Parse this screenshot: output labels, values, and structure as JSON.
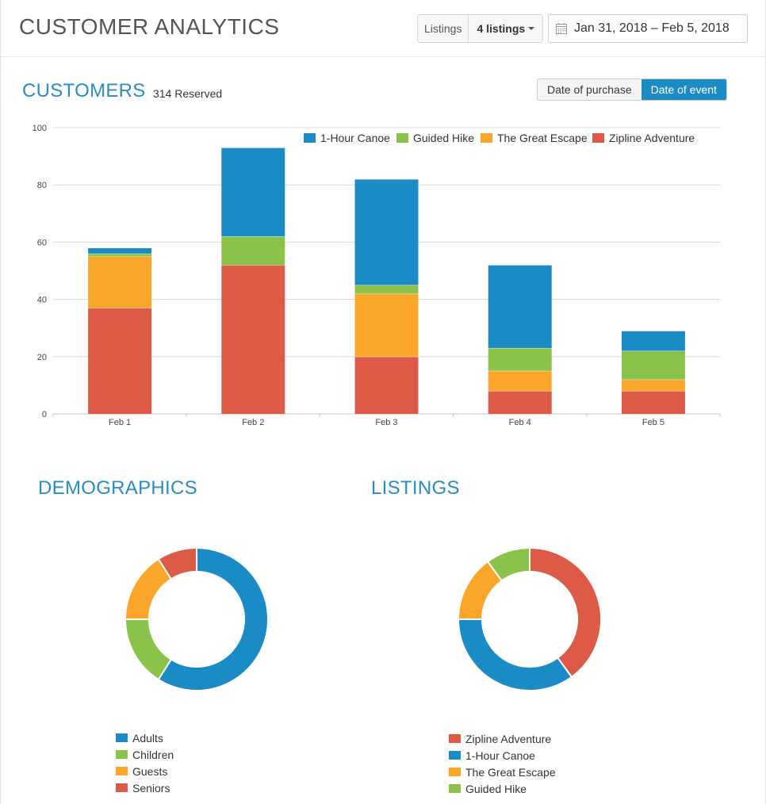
{
  "header": {
    "title": "CUSTOMER ANALYTICS",
    "listings_label": "Listings",
    "listings_value": "4 listings",
    "date_range": "Jan 31, 2018 – Feb 5, 2018"
  },
  "customers": {
    "title": "CUSTOMERS",
    "reserved": "314 Reserved",
    "toggle": {
      "purchase": "Date of purchase",
      "event": "Date of event"
    }
  },
  "colors": {
    "canoe": "#1a8bc4",
    "hike": "#8bc34a",
    "escape": "#fba62b",
    "zipline": "#dc5a46"
  },
  "chart_data": [
    {
      "type": "bar",
      "stacked": true,
      "categories": [
        "Feb 1",
        "Feb 2",
        "Feb 3",
        "Feb 4",
        "Feb 5"
      ],
      "series": [
        {
          "name": "Zipline Adventure",
          "color": "#dc5a46",
          "values": [
            37,
            52,
            20,
            8,
            8
          ]
        },
        {
          "name": "The Great Escape",
          "color": "#fba62b",
          "values": [
            18,
            0,
            22,
            7,
            4
          ]
        },
        {
          "name": "Guided Hike",
          "color": "#8bc34a",
          "values": [
            1,
            10,
            3,
            8,
            10
          ]
        },
        {
          "name": "1-Hour Canoe",
          "color": "#1a8bc4",
          "values": [
            2,
            31,
            37,
            29,
            7
          ]
        }
      ],
      "legend_order": [
        "1-Hour Canoe",
        "Guided Hike",
        "The Great Escape",
        "Zipline Adventure"
      ],
      "ylim": [
        0,
        100
      ],
      "yticks": [
        0,
        20,
        40,
        60,
        80,
        100
      ],
      "grid": true,
      "legend_position": "top-right"
    },
    {
      "type": "pie",
      "donut": true,
      "title": "DEMOGRAPHICS",
      "slices": [
        {
          "name": "Adults",
          "value": 59,
          "color": "#1a8bc4"
        },
        {
          "name": "Children",
          "value": 16,
          "color": "#8bc34a"
        },
        {
          "name": "Guests",
          "value": 16,
          "color": "#fba62b"
        },
        {
          "name": "Seniors",
          "value": 9,
          "color": "#dc5a46"
        }
      ],
      "legend_position": "bottom"
    },
    {
      "type": "pie",
      "donut": true,
      "title": "LISTINGS",
      "slices": [
        {
          "name": "Zipline Adventure",
          "value": 40,
          "color": "#dc5a46"
        },
        {
          "name": "1-Hour Canoe",
          "value": 35,
          "color": "#1a8bc4"
        },
        {
          "name": "The Great Escape",
          "value": 15,
          "color": "#fba62b"
        },
        {
          "name": "Guided Hike",
          "value": 10,
          "color": "#8bc34a"
        }
      ],
      "legend_position": "bottom"
    }
  ]
}
